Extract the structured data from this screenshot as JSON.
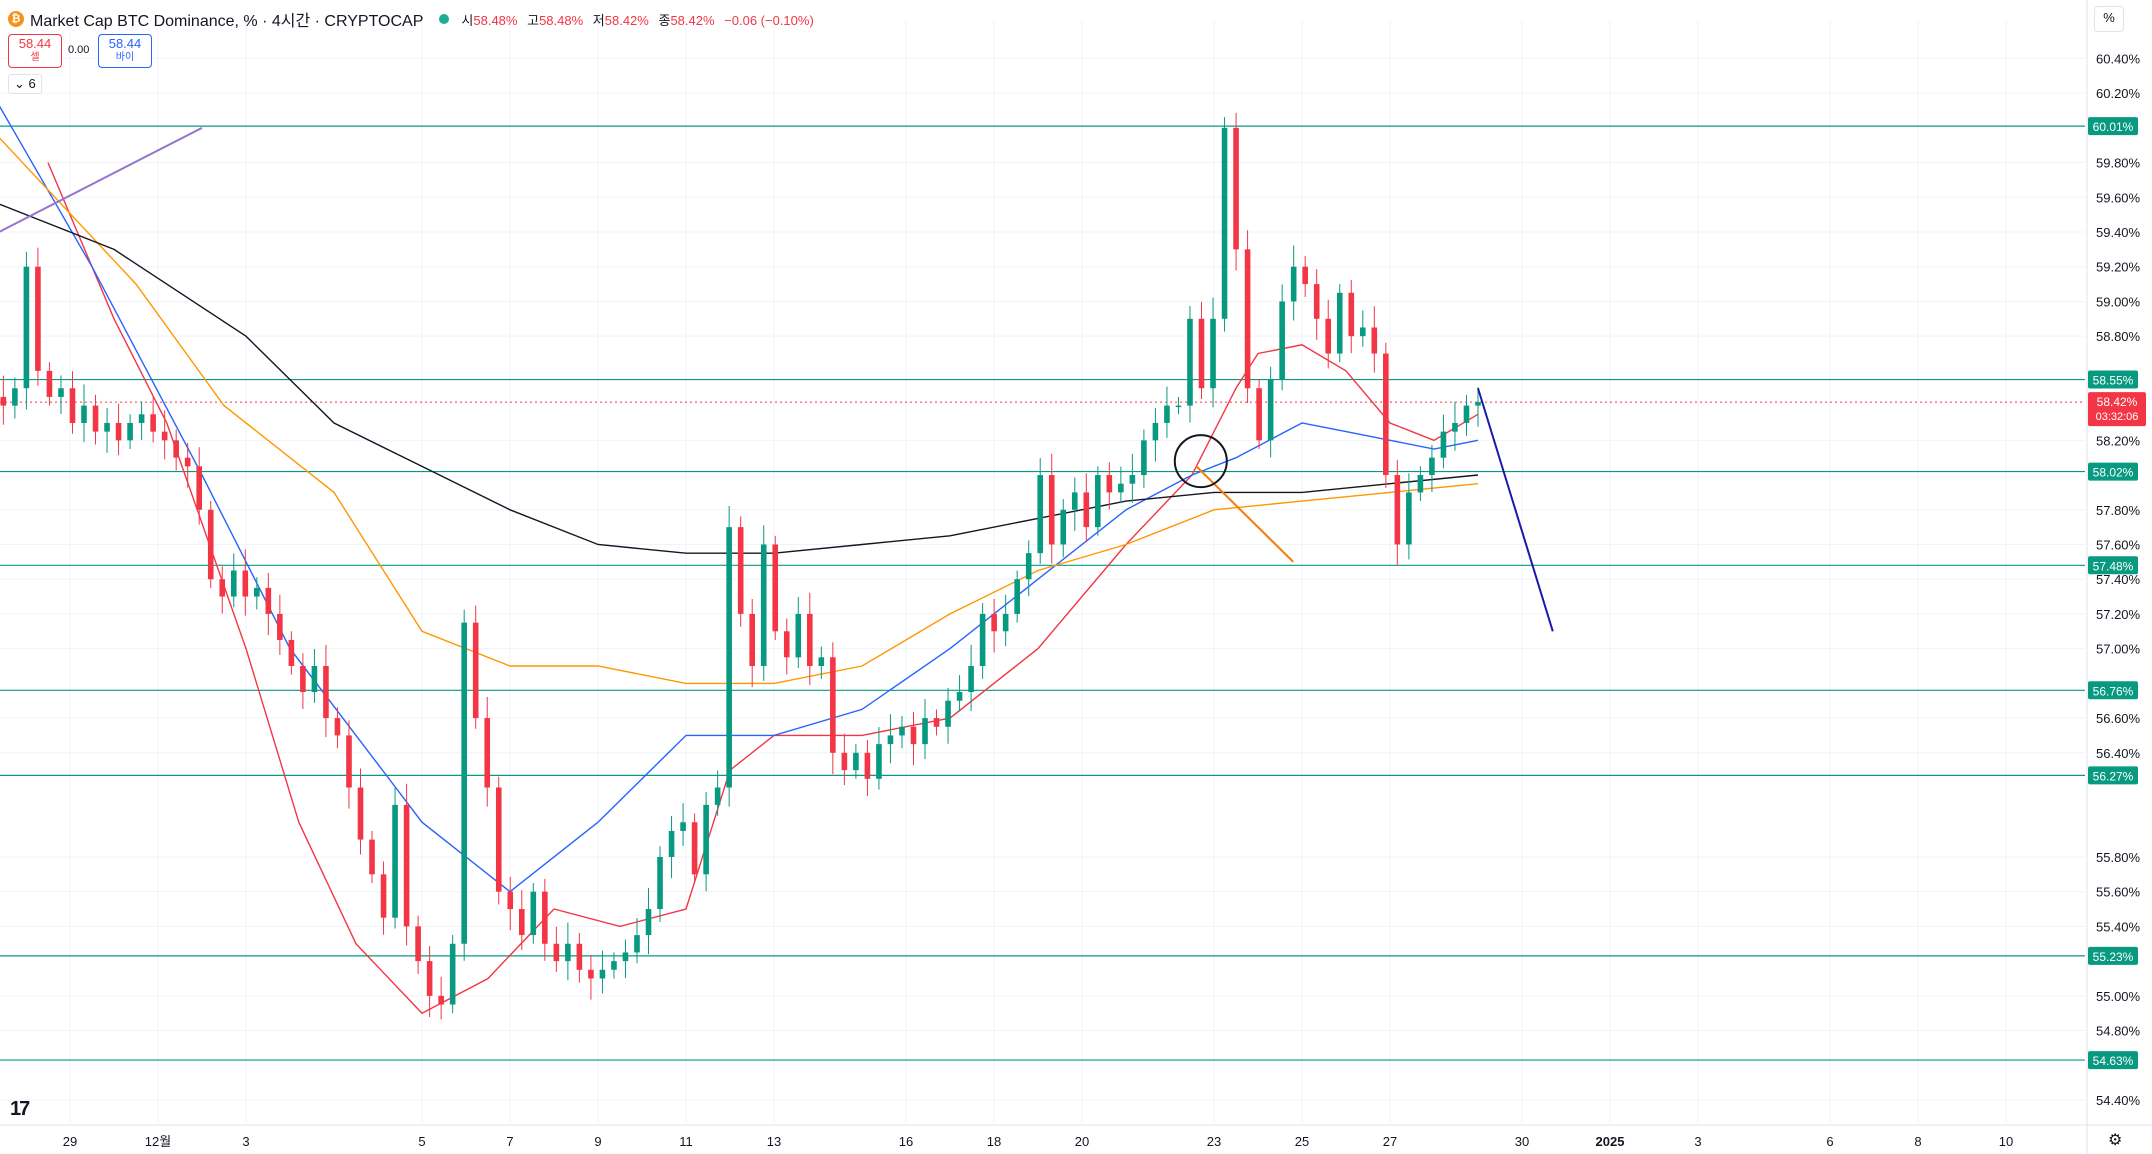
{
  "header": {
    "symbol_icon": "bitcoin-icon",
    "title": "Market Cap BTC Dominance, % · 4시간 · CRYPTOCAP",
    "open_label": "시",
    "open": "58.48%",
    "high_label": "고",
    "high": "58.48%",
    "low_label": "저",
    "low": "58.42%",
    "close_label": "종",
    "close": "58.42%",
    "change": "−0.06 (−0.10%)"
  },
  "trade": {
    "sell_price": "58.44",
    "sell_label": "셀",
    "spread": "0.00",
    "buy_price": "58.44",
    "buy_label": "바이"
  },
  "indicators": {
    "toggle_label": "6"
  },
  "price_axis": {
    "unit_button": "%",
    "ticks": [
      "60.40%",
      "60.20%",
      "59.80%",
      "59.60%",
      "59.40%",
      "59.20%",
      "59.00%",
      "58.80%",
      "58.20%",
      "57.80%",
      "57.60%",
      "57.40%",
      "57.20%",
      "57.00%",
      "56.60%",
      "56.40%",
      "55.80%",
      "55.60%",
      "55.40%",
      "55.00%",
      "54.80%",
      "54.40%"
    ]
  },
  "time_axis": {
    "ticks": [
      "27",
      "29",
      "12월",
      "3",
      "5",
      "7",
      "9",
      "11",
      "13",
      "16",
      "18",
      "20",
      "23",
      "25",
      "27",
      "30",
      "2025",
      "3",
      "6",
      "8",
      "10"
    ]
  },
  "chart_data": {
    "type": "candlestick",
    "title": "Market Cap BTC Dominance, %",
    "interval": "4시간",
    "ylim": [
      54.3,
      60.6
    ],
    "last_price": {
      "label": "58.42%",
      "countdown": "03:32:06",
      "color": "#f23645"
    },
    "horizontal_levels": [
      {
        "label": "60.01%",
        "value": 60.01
      },
      {
        "label": "58.55%",
        "value": 58.55
      },
      {
        "label": "58.02%",
        "value": 58.02
      },
      {
        "label": "57.48%",
        "value": 57.48
      },
      {
        "label": "56.76%",
        "value": 56.76
      },
      {
        "label": "56.27%",
        "value": 56.27
      },
      {
        "label": "55.23%",
        "value": 55.23
      },
      {
        "label": "54.63%",
        "value": 54.63
      }
    ],
    "colors": {
      "up": "#089981",
      "down": "#f23645",
      "level": "#089981",
      "ma_fast": "#f23645",
      "ma_mid": "#2962ff",
      "ma_slow": "#ff9800",
      "ma_long": "#131722"
    },
    "moving_averages": [
      {
        "color": "#f23645",
        "points": [
          [
            -8.5,
            59.8
          ],
          [
            -7.0,
            58.9
          ],
          [
            -5.8,
            58.3
          ],
          [
            -4.0,
            57.0
          ],
          [
            -2.8,
            56.0
          ],
          [
            -1.5,
            55.3
          ],
          [
            0,
            54.9
          ],
          [
            1.5,
            55.1
          ],
          [
            3.0,
            55.5
          ],
          [
            4.5,
            55.4
          ],
          [
            6.0,
            55.5
          ],
          [
            7.0,
            56.3
          ],
          [
            8.0,
            56.5
          ],
          [
            10.0,
            56.5
          ],
          [
            12.0,
            56.6
          ],
          [
            14.0,
            57.0
          ],
          [
            16.0,
            57.6
          ],
          [
            17.5,
            58.0
          ],
          [
            18.5,
            58.5
          ],
          [
            19.0,
            58.7
          ],
          [
            20.0,
            58.75
          ],
          [
            21.0,
            58.6
          ],
          [
            22.0,
            58.3
          ],
          [
            23.0,
            58.2
          ],
          [
            24.0,
            58.35
          ]
        ]
      },
      {
        "color": "#2962ff",
        "points": [
          [
            -10.0,
            60.3
          ],
          [
            -7.5,
            59.2
          ],
          [
            -5.0,
            58.0
          ],
          [
            -3.0,
            57.0
          ],
          [
            -1.5,
            56.5
          ],
          [
            0,
            56.0
          ],
          [
            2.0,
            55.6
          ],
          [
            4.0,
            56.0
          ],
          [
            6.0,
            56.5
          ],
          [
            8.0,
            56.5
          ],
          [
            10.0,
            56.65
          ],
          [
            12.0,
            57.0
          ],
          [
            14.0,
            57.4
          ],
          [
            16.0,
            57.8
          ],
          [
            17.5,
            58.0
          ],
          [
            18.5,
            58.1
          ],
          [
            20.0,
            58.3
          ],
          [
            21.0,
            58.25
          ],
          [
            22.0,
            58.2
          ],
          [
            23.0,
            58.15
          ],
          [
            24.0,
            58.2
          ]
        ]
      },
      {
        "color": "#ff9800",
        "points": [
          [
            -10.0,
            60.05
          ],
          [
            -6.5,
            59.1
          ],
          [
            -4.5,
            58.4
          ],
          [
            -2.0,
            57.9
          ],
          [
            0,
            57.1
          ],
          [
            2.0,
            56.9
          ],
          [
            4.0,
            56.9
          ],
          [
            6.0,
            56.8
          ],
          [
            8.0,
            56.8
          ],
          [
            10.0,
            56.9
          ],
          [
            12.0,
            57.2
          ],
          [
            14.0,
            57.45
          ],
          [
            16.0,
            57.6
          ],
          [
            18.0,
            57.8
          ],
          [
            20.0,
            57.85
          ],
          [
            22.0,
            57.9
          ],
          [
            24.0,
            57.95
          ]
        ]
      },
      {
        "color": "#131722",
        "points": [
          [
            -10.0,
            59.6
          ],
          [
            -7.0,
            59.3
          ],
          [
            -4.0,
            58.8
          ],
          [
            -2.0,
            58.3
          ],
          [
            0,
            58.05
          ],
          [
            2.0,
            57.8
          ],
          [
            4.0,
            57.6
          ],
          [
            6.0,
            57.55
          ],
          [
            8.0,
            57.55
          ],
          [
            10.0,
            57.6
          ],
          [
            12.0,
            57.65
          ],
          [
            14.0,
            57.75
          ],
          [
            16.0,
            57.85
          ],
          [
            18.0,
            57.9
          ],
          [
            20.0,
            57.9
          ],
          [
            22.0,
            57.95
          ],
          [
            24.0,
            58.0
          ]
        ]
      }
    ],
    "drawings": [
      {
        "type": "trendline",
        "color": "#9575cd",
        "from": [
          -10.0,
          59.35
        ],
        "to": [
          -5.0,
          60.0
        ]
      },
      {
        "type": "trendline",
        "color": "#f57c00",
        "from": [
          17.6,
          58.05
        ],
        "to": [
          19.8,
          57.5
        ]
      },
      {
        "type": "trendline",
        "color": "#1a1aa8",
        "from": [
          24.0,
          58.5
        ],
        "to": [
          25.7,
          57.1
        ]
      },
      {
        "type": "circle",
        "color": "#131722",
        "center": [
          17.7,
          58.08
        ]
      }
    ],
    "candles_close": [
      58.6,
      58.5,
      58.45,
      58.4,
      58.5,
      59.2,
      58.6,
      58.45,
      58.5,
      58.3,
      58.4,
      58.25,
      58.3,
      58.2,
      58.3,
      58.35,
      58.25,
      58.2,
      58.1,
      58.05,
      57.8,
      57.4,
      57.3,
      57.45,
      57.3,
      57.35,
      57.2,
      57.05,
      56.9,
      56.75,
      56.9,
      56.6,
      56.5,
      56.2,
      55.9,
      55.7,
      55.45,
      56.1,
      55.4,
      55.2,
      55.0,
      54.95,
      55.3,
      57.15,
      56.6,
      56.2,
      55.6,
      55.5,
      55.35,
      55.6,
      55.3,
      55.2,
      55.3,
      55.15,
      55.1,
      55.15,
      55.2,
      55.25,
      55.35,
      55.5,
      55.8,
      55.95,
      56.0,
      55.7,
      56.1,
      56.2,
      57.7,
      57.2,
      56.9,
      57.6,
      57.1,
      56.95,
      57.2,
      56.9,
      56.95,
      56.4,
      56.3,
      56.4,
      56.25,
      56.45,
      56.5,
      56.55,
      56.45,
      56.6,
      56.55,
      56.7,
      56.75,
      56.9,
      57.2,
      57.1,
      57.2,
      57.4,
      57.55,
      58.0,
      57.6,
      57.8,
      57.9,
      57.7,
      58.0,
      57.9,
      57.95,
      58.0,
      58.2,
      58.3,
      58.4,
      58.4,
      58.9,
      58.5,
      58.9,
      60.0,
      59.3,
      58.5,
      58.2,
      58.55,
      59.0,
      59.2,
      59.1,
      58.9,
      58.7,
      59.05,
      58.8,
      58.85,
      58.7,
      58.0,
      57.6,
      57.9,
      58.0,
      58.1,
      58.25,
      58.3,
      58.4,
      58.42
    ]
  }
}
